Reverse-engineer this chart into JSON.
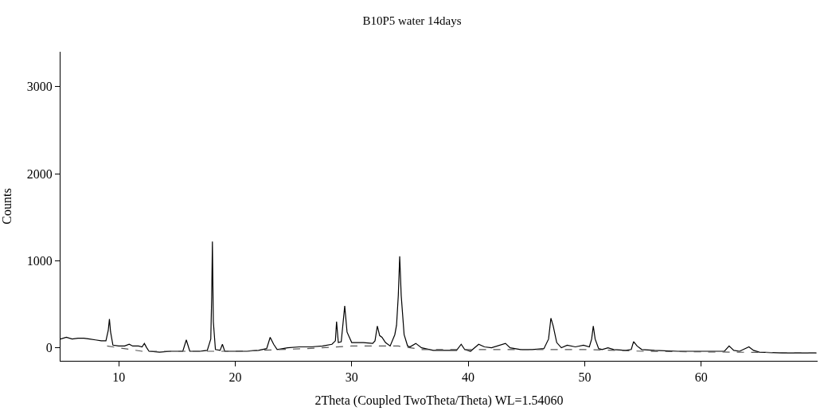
{
  "chart_data": {
    "type": "line",
    "title": "B10P5 water 14days",
    "xlabel": "2Theta (Coupled TwoTheta/Theta) WL=1.54060",
    "ylabel": "Counts",
    "xlim": [
      5,
      70
    ],
    "xticks": [
      10,
      20,
      30,
      40,
      50,
      60
    ],
    "ylim": [
      -150,
      3400
    ],
    "yticks": [
      0,
      1000,
      2000,
      3000
    ],
    "series": [
      {
        "color": "#000000",
        "line_style": "solid",
        "x": [
          5,
          5.5,
          6,
          6.5,
          7,
          7.5,
          8,
          8.5,
          8.9,
          9.1,
          9.2,
          9.3,
          9.5,
          10,
          10.5,
          10.9,
          11.2,
          11.7,
          12.0,
          12.2,
          12.4,
          12.6,
          13.5,
          14.5,
          15.5,
          15.8,
          16.1,
          17,
          17.6,
          17.9,
          17.98,
          18.04,
          18.12,
          18.3,
          18.7,
          18.9,
          19.1,
          20,
          21,
          22,
          22.7,
          23.0,
          23.3,
          23.6,
          24.5,
          25.5,
          26.5,
          27.5,
          28.3,
          28.6,
          28.7,
          28.85,
          29.1,
          29.4,
          29.6,
          30,
          31,
          31.8,
          32.0,
          32.2,
          32.4,
          32.6,
          32.9,
          33.3,
          33.7,
          33.85,
          34.0,
          34.12,
          34.25,
          34.5,
          34.8,
          35.0,
          35.5,
          36,
          37,
          38,
          39,
          39.4,
          39.7,
          40.2,
          40.9,
          41.4,
          42,
          43.2,
          43.6,
          44.5,
          45.5,
          46.5,
          46.9,
          47.1,
          47.3,
          47.6,
          48,
          48.5,
          49.2,
          49.9,
          50.4,
          50.6,
          50.74,
          50.9,
          51.2,
          51.5,
          52,
          52.5,
          53.5,
          54.0,
          54.2,
          54.5,
          54.9,
          56,
          58,
          60,
          62,
          62.4,
          62.8,
          63.3,
          64.1,
          64.5,
          65,
          67,
          69.9
        ],
        "values": [
          100,
          120,
          100,
          110,
          110,
          100,
          90,
          80,
          80,
          200,
          330,
          180,
          30,
          20,
          20,
          40,
          20,
          20,
          10,
          50,
          0,
          -40,
          -50,
          -40,
          -40,
          90,
          -40,
          -40,
          -30,
          100,
          590,
          1220,
          300,
          -20,
          -30,
          40,
          -40,
          -40,
          -40,
          -30,
          -10,
          120,
          40,
          -20,
          0,
          10,
          10,
          20,
          40,
          80,
          300,
          60,
          70,
          480,
          180,
          60,
          60,
          50,
          80,
          250,
          140,
          120,
          60,
          20,
          150,
          260,
          600,
          1050,
          600,
          150,
          20,
          10,
          50,
          0,
          -30,
          -30,
          -30,
          40,
          -20,
          -40,
          40,
          10,
          0,
          50,
          0,
          -20,
          -20,
          -10,
          100,
          340,
          250,
          60,
          0,
          30,
          10,
          30,
          10,
          100,
          250,
          100,
          -10,
          -20,
          0,
          -20,
          -30,
          -20,
          70,
          20,
          -20,
          -30,
          -40,
          -40,
          -40,
          20,
          -30,
          -40,
          10,
          -30,
          -50,
          -60,
          -60
        ]
      },
      {
        "color": "#555555",
        "line_style": "dashed",
        "x": [
          9,
          12,
          20,
          26,
          30,
          34,
          36,
          45,
          50,
          55,
          70
        ],
        "values": [
          20,
          -40,
          -40,
          -10,
          20,
          20,
          -20,
          -20,
          -20,
          -40,
          -60
        ]
      }
    ]
  }
}
